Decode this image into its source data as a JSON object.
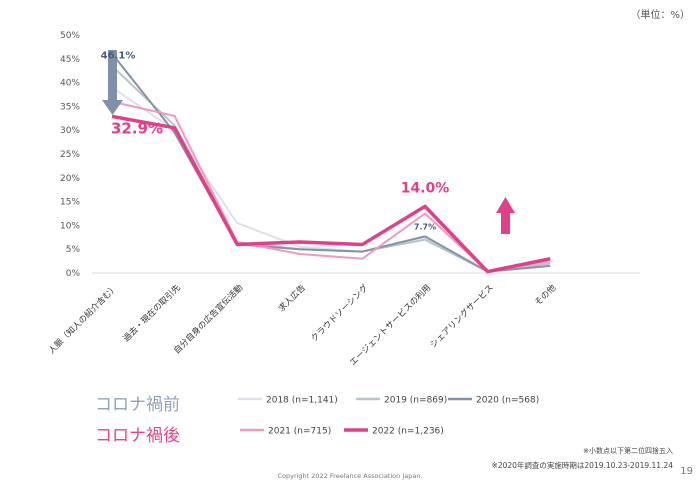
{
  "unit_note": "（単位：%）",
  "page_number": "19",
  "copyright": "Copyright 2022 Freelance Association Japan.",
  "notes": [
    "※小数点以下第二位四捨五入",
    "※2020年調査の実施時期は2019.10.23-2019.11.24"
  ],
  "legend": {
    "group_before": "コロナ禍前",
    "group_after": "コロナ禍後",
    "before_color": "#8fa3b8",
    "after_color": "#e0468e"
  },
  "chart_data": {
    "type": "line",
    "categories": [
      "人脈（知人の紹介含む）",
      "過去・現在の取引先",
      "自分自身の広告宣伝活動",
      "求人広告",
      "クラウドソーシング",
      "エージェントサービスの利用",
      "シェアリングサービス",
      "その他"
    ],
    "ylim": [
      0,
      50
    ],
    "yticks": [
      "0%",
      "5%",
      "10%",
      "15%",
      "20%",
      "25%",
      "30%",
      "35%",
      "40%",
      "45%",
      "50%"
    ],
    "series": [
      {
        "name": "2018 (n=1,141)",
        "color": "#dde1e8",
        "values": [
          39.0,
          30.0,
          10.5,
          5.5,
          4.5,
          7.5,
          0.3,
          2.5
        ]
      },
      {
        "name": "2019 (n=869)",
        "color": "#b9c3cf",
        "values": [
          43.5,
          31.0,
          6.5,
          5.0,
          4.5,
          7.0,
          0.3,
          2.0
        ]
      },
      {
        "name": "2020 (n=568)",
        "color": "#8494a8",
        "values": [
          46.1,
          29.5,
          6.0,
          5.0,
          4.5,
          7.7,
          0.3,
          1.5
        ]
      },
      {
        "name": "2021 (n=715)",
        "color": "#ee9ac0",
        "values": [
          36.0,
          33.0,
          6.5,
          4.0,
          3.0,
          12.5,
          0.3,
          2.5
        ]
      },
      {
        "name": "2022 (n=1,236)",
        "color": "#e0408a",
        "values": [
          32.9,
          30.5,
          6.0,
          6.5,
          6.0,
          14.0,
          0.3,
          3.0
        ]
      }
    ],
    "annotations": [
      {
        "text": "46.1%",
        "value": 46.1,
        "category_index": 0,
        "color": "#4a5a78"
      },
      {
        "text": "32.9%",
        "value": 32.9,
        "category_index": 0,
        "color": "#e0408a"
      },
      {
        "text": "14.0%",
        "value": 14.0,
        "category_index": 5,
        "color": "#e0408a"
      },
      {
        "text": "7.7%",
        "value": 7.7,
        "category_index": 5,
        "color": "#4a5a78"
      }
    ]
  }
}
